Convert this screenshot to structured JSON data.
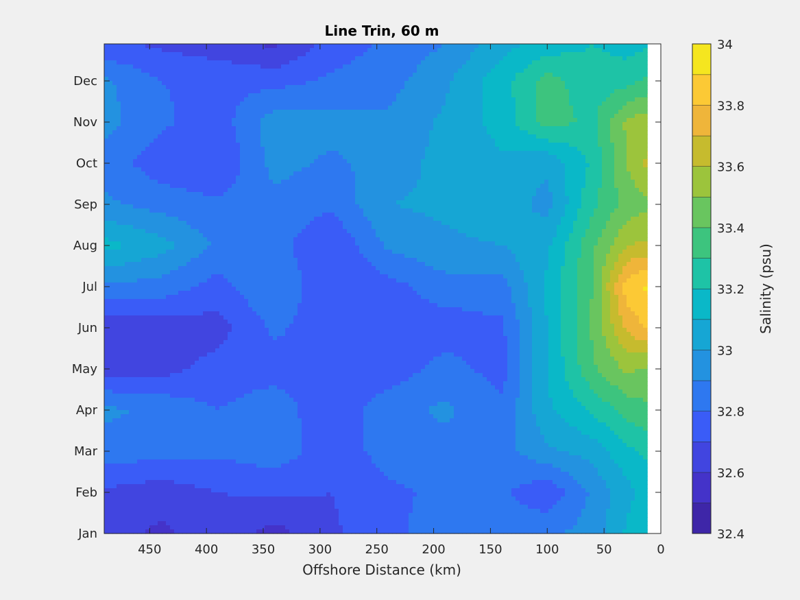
{
  "chart_data": {
    "type": "heatmap",
    "title": "Line Trin, 60 m",
    "xlabel": "Offshore Distance (km)",
    "ylabel": "",
    "xlim": [
      490,
      0
    ],
    "x_reversed": true,
    "x_ticks": [
      450,
      400,
      350,
      300,
      250,
      200,
      150,
      100,
      50,
      0
    ],
    "y_ticks": [
      "Jan",
      "Feb",
      "Mar",
      "Apr",
      "May",
      "Jun",
      "Jul",
      "Aug",
      "Sep",
      "Oct",
      "Nov",
      "Dec"
    ],
    "data_xlim": [
      490,
      12
    ],
    "colorbar": {
      "label": "Salinity (psu)",
      "range": [
        32.4,
        34
      ],
      "ticks": [
        32.4,
        32.6,
        32.8,
        33,
        33.2,
        33.4,
        33.6,
        33.8,
        34
      ],
      "levels": [
        32.4,
        32.5,
        32.6,
        32.7,
        32.8,
        32.9,
        33.0,
        33.1,
        33.2,
        33.3,
        33.4,
        33.5,
        33.6,
        33.7,
        33.8,
        33.9,
        34.0
      ],
      "colors": [
        "#3e26a8",
        "#4433c9",
        "#4145e0",
        "#3a5cf7",
        "#2e78f0",
        "#2392e0",
        "#16a6d4",
        "#0ab8c8",
        "#1ec3a6",
        "#3dc47e",
        "#69c55f",
        "#9cc43c",
        "#c6bb2e",
        "#efb53a",
        "#fcc935",
        "#f5e61f"
      ]
    },
    "grid": false,
    "salinity_grid": {
      "x_km": [
        490,
        440,
        390,
        340,
        290,
        240,
        190,
        140,
        100,
        60,
        30,
        12
      ],
      "months": [
        1,
        2,
        3,
        4,
        5,
        6,
        7,
        8,
        9,
        10,
        11,
        12,
        12.9
      ],
      "values": [
        [
          32.64,
          32.58,
          32.66,
          32.56,
          32.68,
          32.78,
          32.84,
          32.86,
          32.88,
          32.94,
          33.12,
          33.18
        ],
        [
          32.68,
          32.64,
          32.7,
          32.72,
          32.7,
          32.78,
          32.82,
          32.82,
          32.72,
          32.92,
          33.06,
          33.16
        ],
        [
          32.86,
          32.84,
          32.82,
          32.86,
          32.74,
          32.84,
          32.86,
          32.86,
          32.98,
          33.04,
          33.18,
          33.22
        ],
        [
          32.92,
          32.88,
          32.8,
          32.86,
          32.72,
          32.86,
          32.92,
          32.82,
          33.08,
          33.22,
          33.34,
          33.38
        ],
        [
          32.66,
          32.66,
          32.74,
          32.76,
          32.74,
          32.74,
          32.84,
          32.76,
          33.1,
          33.38,
          33.52,
          33.48
        ],
        [
          32.64,
          32.64,
          32.66,
          32.82,
          32.74,
          32.74,
          32.74,
          32.78,
          33.1,
          33.42,
          33.72,
          33.82
        ],
        [
          32.88,
          32.86,
          32.76,
          32.9,
          32.7,
          32.76,
          32.86,
          32.86,
          33.12,
          33.4,
          33.86,
          33.92
        ],
        [
          33.14,
          33.04,
          32.88,
          32.84,
          32.7,
          32.92,
          32.98,
          33.0,
          33.08,
          33.38,
          33.6,
          33.62
        ],
        [
          32.92,
          32.86,
          32.82,
          32.86,
          32.82,
          33.0,
          33.02,
          33.06,
          32.96,
          33.28,
          33.44,
          33.48
        ],
        [
          32.86,
          32.74,
          32.7,
          32.94,
          32.88,
          32.94,
          33.04,
          33.08,
          33.02,
          33.22,
          33.5,
          33.62
        ],
        [
          32.94,
          32.82,
          32.74,
          32.96,
          32.94,
          32.92,
          33.02,
          33.14,
          33.34,
          33.28,
          33.52,
          33.56
        ],
        [
          32.92,
          32.8,
          32.78,
          32.76,
          32.82,
          32.86,
          32.98,
          33.16,
          33.34,
          33.24,
          33.26,
          33.32
        ],
        [
          32.72,
          32.68,
          32.64,
          32.58,
          32.74,
          32.82,
          32.9,
          33.06,
          33.14,
          33.2,
          33.16,
          33.18
        ]
      ]
    }
  }
}
